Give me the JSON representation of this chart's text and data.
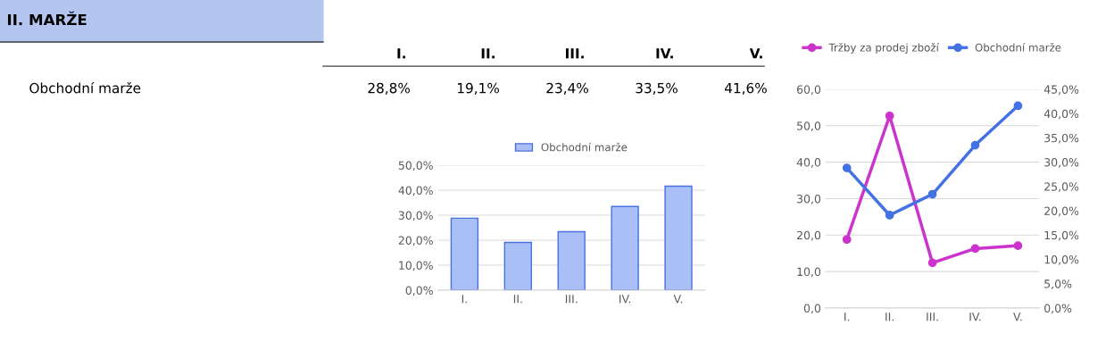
{
  "chart_data": [
    {
      "type": "other",
      "title": "II. MARŽE",
      "ylabel": "Obchodní marže",
      "categories": [
        "I.",
        "II.",
        "III.",
        "IV.",
        "V."
      ],
      "value_labels": [
        "28,8%",
        "19,1%",
        "23,4%",
        "33,5%",
        "41,6%"
      ]
    },
    {
      "type": "bar",
      "categories": [
        "I.",
        "II.",
        "III.",
        "IV.",
        "V."
      ],
      "series": [
        {
          "name": "Obchodní marže",
          "color": "#aabff5",
          "values": [
            28.8,
            19.1,
            23.4,
            33.5,
            41.6
          ]
        }
      ],
      "ylim": [
        0,
        50
      ],
      "yticks": [
        {
          "value": 0,
          "label": "0,0%"
        },
        {
          "value": 10,
          "label": "10,0%"
        },
        {
          "value": 20,
          "label": "20,0%"
        },
        {
          "value": 30,
          "label": "30,0%"
        },
        {
          "value": 40,
          "label": "40,0%"
        },
        {
          "value": 50,
          "label": "50,0%"
        }
      ],
      "grid": "y",
      "legend": "top"
    },
    {
      "type": "line",
      "categories": [
        "I.",
        "II.",
        "III.",
        "IV.",
        "V."
      ],
      "series": [
        {
          "name": "Tržby za prodej zboží",
          "color": "#cc33cc",
          "values": [
            18.8,
            52.7,
            12.4,
            16.3,
            17.1
          ]
        },
        {
          "name": "Obchodní marže",
          "color": "#4472e4",
          "values": [
            28.8,
            19.1,
            23.4,
            33.5,
            41.6
          ],
          "axis": "y2"
        }
      ],
      "ylim": [
        0,
        60
      ],
      "yticks": [
        {
          "value": 0,
          "label": "0,0"
        },
        {
          "value": 10,
          "label": "10,0"
        },
        {
          "value": 20,
          "label": "20,0"
        },
        {
          "value": 30,
          "label": "30,0"
        },
        {
          "value": 40,
          "label": "40,0"
        },
        {
          "value": 50,
          "label": "50,0"
        },
        {
          "value": 60,
          "label": "60,0"
        }
      ],
      "y2lim": [
        0,
        45
      ],
      "y2ticks": [
        {
          "value": 0,
          "label": "0,0%"
        },
        {
          "value": 5,
          "label": "5,0%"
        },
        {
          "value": 10,
          "label": "10,0%"
        },
        {
          "value": 15,
          "label": "15,0%"
        },
        {
          "value": 20,
          "label": "20,0%"
        },
        {
          "value": 25,
          "label": "25,0%"
        },
        {
          "value": 30,
          "label": "30,0%"
        },
        {
          "value": 35,
          "label": "35,0%"
        },
        {
          "value": 40,
          "label": "40,0%"
        },
        {
          "value": 45,
          "label": "45,0%"
        }
      ],
      "grid": "y",
      "legend": "top",
      "marker": "circle",
      "line_style": "solid"
    }
  ]
}
